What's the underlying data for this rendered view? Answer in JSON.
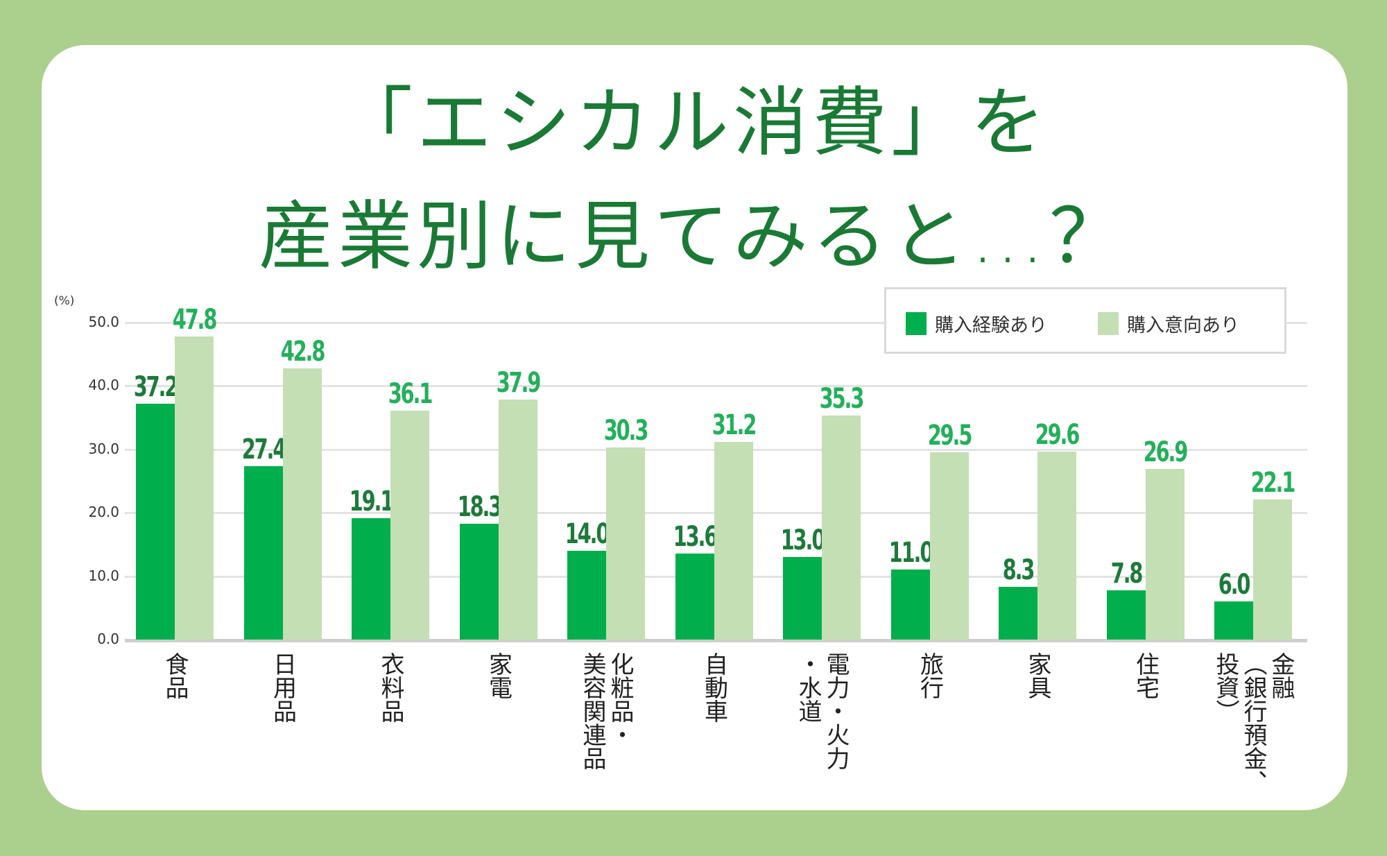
{
  "title": {
    "line1": "「エシカル消費」を",
    "line2": "産業別に見てみると…？"
  },
  "colors": {
    "background": "#abd08e",
    "title": "#1a7a35",
    "experience_bar": "#00ae4b",
    "intention_bar": "#c4dfb4",
    "experience_label": "#1d7a3a",
    "intention_label": "#22b05a"
  },
  "axis": {
    "unit": "(%)",
    "ticks": [
      "50.0",
      "40.0",
      "30.0",
      "20.0",
      "10.0",
      "0.0"
    ]
  },
  "legend": {
    "experience": "購入経験あり",
    "intention": "購入意向あり"
  },
  "chart_data": {
    "type": "bar",
    "title": "「エシカル消費」を産業別に見てみると…？",
    "xlabel": "",
    "ylabel": "(%)",
    "ylim": [
      0,
      50
    ],
    "yticks": [
      0,
      10,
      20,
      30,
      40,
      50
    ],
    "grid": true,
    "legend_position": "top-right",
    "categories": [
      "食品",
      "日用品",
      "衣料品",
      "家電",
      "化粧品・美容関連品",
      "自動車",
      "電力・火力・水道",
      "旅行",
      "家具",
      "住宅",
      "金融（銀行預金、投資）"
    ],
    "category_lines": [
      [
        "食品"
      ],
      [
        "日用品"
      ],
      [
        "衣料品"
      ],
      [
        "家電"
      ],
      [
        "化粧品・",
        "美容関連品"
      ],
      [
        "自動車"
      ],
      [
        "電力・火力",
        "・水道"
      ],
      [
        "旅行"
      ],
      [
        "家具"
      ],
      [
        "住宅"
      ],
      [
        "金融",
        "（銀行預金、",
        "投資）"
      ]
    ],
    "series": [
      {
        "name": "購入経験あり",
        "values": [
          37.2,
          27.4,
          19.1,
          18.3,
          14.0,
          13.6,
          13.0,
          11.0,
          8.3,
          7.8,
          6.0
        ],
        "labels": [
          "37.2",
          "27.4",
          "19.1",
          "18.3",
          "14.0",
          "13.6",
          "13.0",
          "11.0",
          "8.3",
          "7.8",
          "6.0"
        ]
      },
      {
        "name": "購入意向あり",
        "values": [
          47.8,
          42.8,
          36.1,
          37.9,
          30.3,
          31.2,
          35.3,
          29.5,
          29.6,
          26.9,
          22.1
        ],
        "labels": [
          "47.8",
          "42.8",
          "36.1",
          "37.9",
          "30.3",
          "31.2",
          "35.3",
          "29.5",
          "29.6",
          "26.9",
          "22.1"
        ]
      }
    ]
  }
}
